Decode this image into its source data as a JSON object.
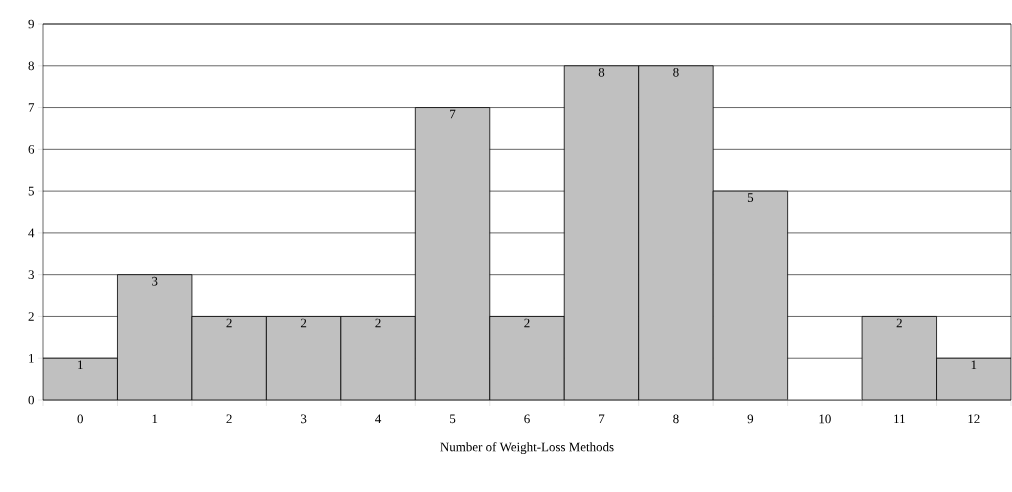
{
  "chart_data": {
    "type": "bar",
    "xlabel": "Number of Weight-Loss Methods",
    "categories": [
      "0",
      "1",
      "2",
      "3",
      "4",
      "5",
      "6",
      "7",
      "8",
      "9",
      "10",
      "11",
      "12"
    ],
    "values": [
      1,
      3,
      2,
      2,
      2,
      7,
      2,
      8,
      8,
      5,
      0,
      2,
      1
    ],
    "value_labels": [
      "1",
      "3",
      "2",
      "2",
      "2",
      "7",
      "2",
      "8",
      "8",
      "5",
      null,
      "2",
      "1"
    ],
    "color": "#c0c0c0",
    "ylim": [
      0,
      9
    ],
    "yticks": [
      0,
      1,
      2,
      3,
      4,
      5,
      6,
      7,
      8,
      9
    ],
    "grid": "y"
  }
}
